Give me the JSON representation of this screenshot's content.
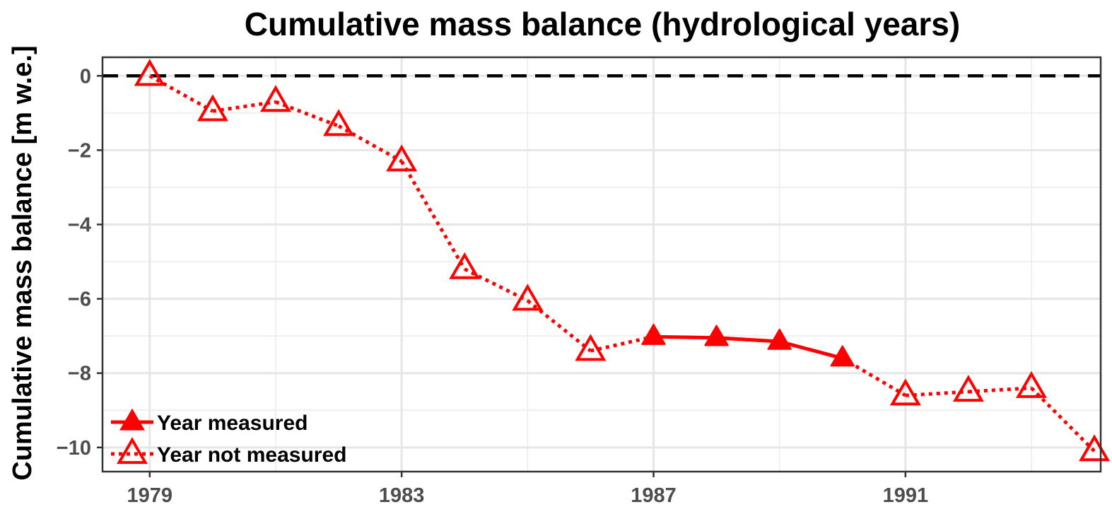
{
  "chart_data": {
    "type": "line",
    "title": "Cumulative mass balance (hydrological years)",
    "xlabel": "",
    "ylabel": "Cumulative mass balance [m w.e.]",
    "xlim": [
      1978.25,
      1994.1
    ],
    "ylim": [
      -10.65,
      0.5
    ],
    "xticks": [
      1979,
      1983,
      1987,
      1991
    ],
    "xtick_labels": [
      "1979",
      "1983",
      "1987",
      "1991"
    ],
    "yticks": [
      0,
      -2,
      -4,
      -6,
      -8,
      -10
    ],
    "ytick_labels": [
      "0",
      "−2",
      "−4",
      "−6",
      "−8",
      "−10"
    ],
    "grid": true,
    "reference_line": {
      "y": 0,
      "style": "dashed",
      "color": "#000000"
    },
    "color": "#ff0000",
    "x": [
      1979,
      1980,
      1981,
      1982,
      1983,
      1984,
      1985,
      1986,
      1987,
      1988,
      1989,
      1990,
      1991,
      1992,
      1993,
      1994
    ],
    "y": [
      0.0,
      -0.95,
      -0.7,
      -1.35,
      -2.3,
      -5.2,
      -6.05,
      -7.4,
      -7.02,
      -7.05,
      -7.15,
      -7.6,
      -8.6,
      -8.5,
      -8.4,
      -10.1
    ],
    "measured": [
      false,
      false,
      false,
      false,
      false,
      false,
      false,
      false,
      true,
      true,
      true,
      true,
      false,
      false,
      false,
      false
    ],
    "series": [
      {
        "name": "Year measured",
        "marker": "filled-triangle",
        "line": "solid"
      },
      {
        "name": "Year not measured",
        "marker": "open-triangle",
        "line": "dotted"
      }
    ],
    "legend_position": "bottom-left"
  }
}
